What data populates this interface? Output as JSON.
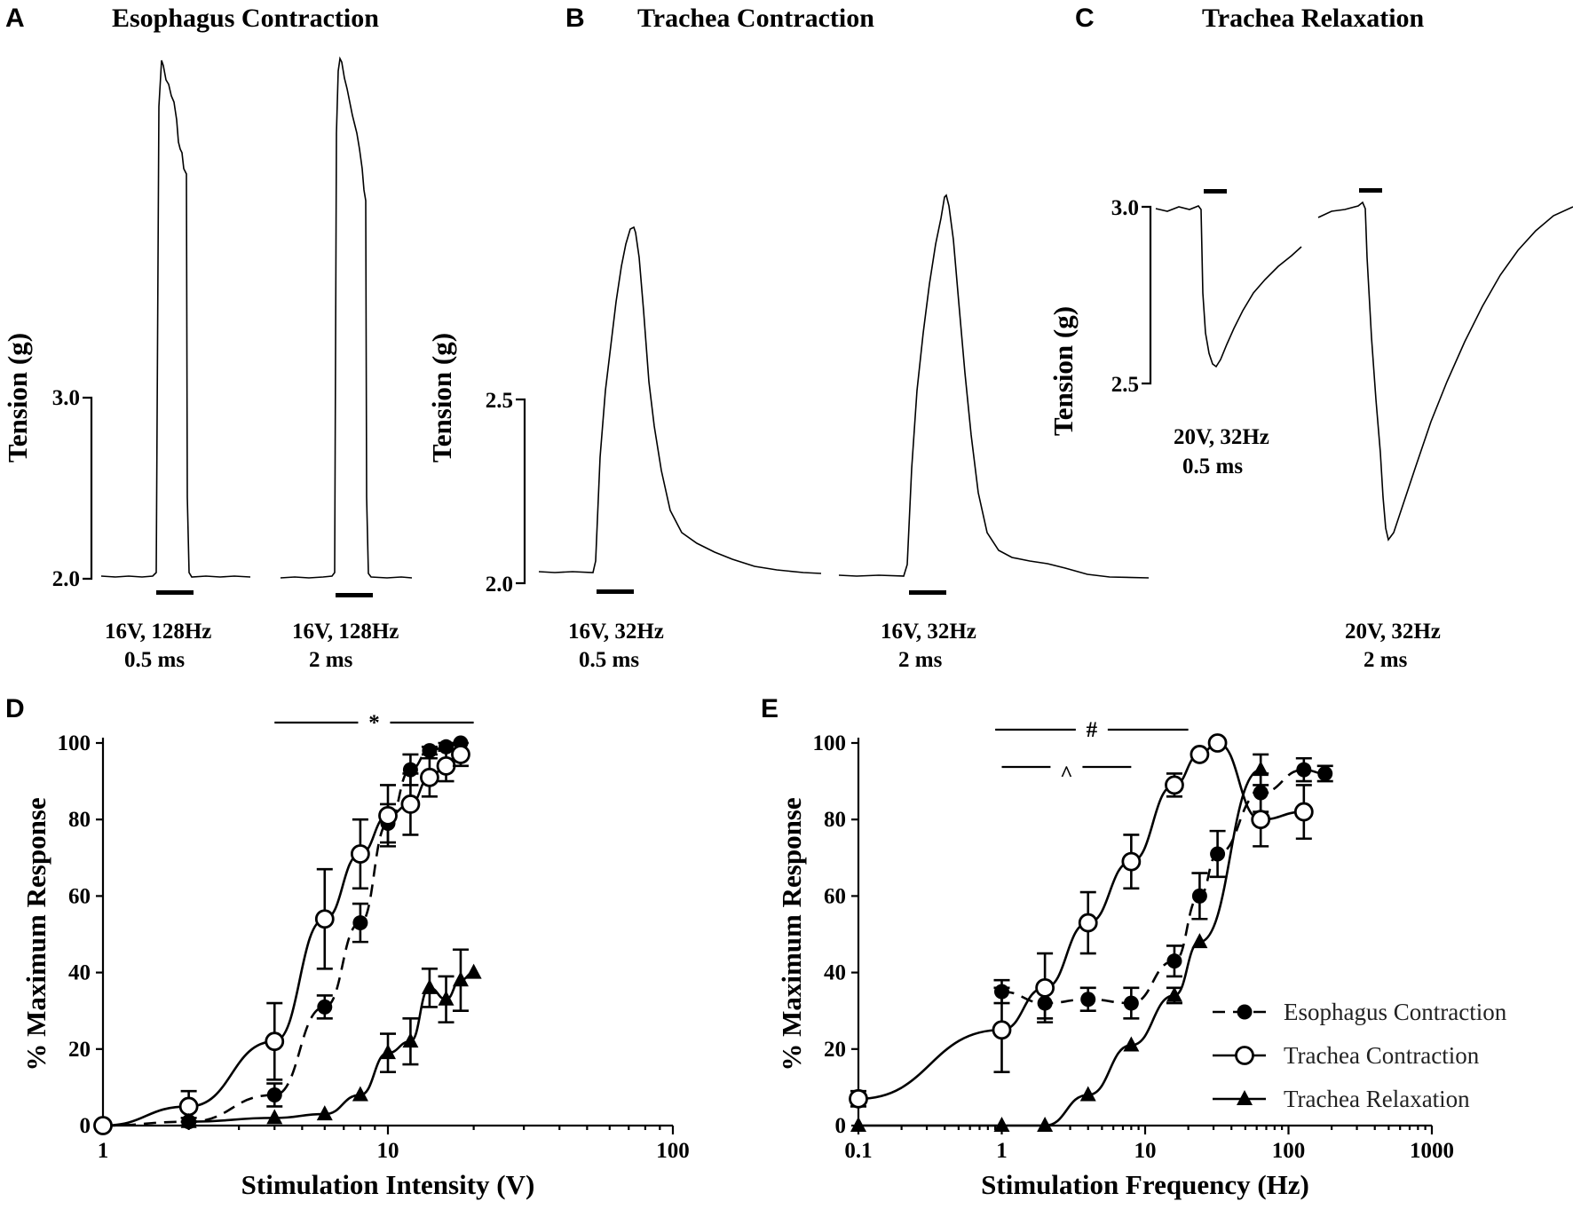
{
  "traces": {
    "A": {
      "letter": "A",
      "title": "Esophagus Contraction",
      "ylabel": "Tension (g)",
      "scale_ticks": [
        "3.0",
        "2.0"
      ],
      "captions": [
        {
          "line1": "16V, 128Hz",
          "line2": "0.5 ms"
        },
        {
          "line1": "16V, 128Hz",
          "line2": "2 ms"
        }
      ]
    },
    "B": {
      "letter": "B",
      "title": "Trachea Contraction",
      "ylabel": "Tension (g)",
      "scale_ticks": [
        "2.5",
        "2.0"
      ],
      "captions": [
        {
          "line1": "16V, 32Hz",
          "line2": "0.5 ms"
        },
        {
          "line1": "16V, 32Hz",
          "line2": "2 ms"
        }
      ]
    },
    "C": {
      "letter": "C",
      "title": "Trachea Relaxation",
      "ylabel": "Tension (g)",
      "scale_ticks": [
        "3.0",
        "2.5"
      ],
      "captions": [
        {
          "line1": "20V, 32Hz",
          "line2": "0.5 ms"
        },
        {
          "line1": "20V, 32Hz",
          "line2": "2 ms"
        }
      ]
    }
  },
  "chart_data": [
    {
      "panel": "D",
      "type": "scatter",
      "xscale": "log",
      "xlabel": "Stimulation Intensity (V)",
      "ylabel": "% Maximum Response",
      "xlim": [
        1,
        100
      ],
      "ylim": [
        0,
        100
      ],
      "xticks": [
        "1",
        "10",
        "100"
      ],
      "yticks": [
        "0",
        "20",
        "40",
        "60",
        "80",
        "100"
      ],
      "significance": [
        {
          "symbol": "*",
          "from": 4,
          "to": 20
        }
      ],
      "series": [
        {
          "name": "Esophagus Contraction",
          "marker": "filled-circle",
          "fit": "dashed",
          "x": [
            1,
            2,
            4,
            6,
            8,
            10,
            12,
            14,
            16,
            18
          ],
          "y": [
            0,
            1,
            8,
            31,
            53,
            79,
            93,
            98,
            99,
            100
          ],
          "err": [
            0,
            1,
            3,
            3,
            5,
            5,
            4,
            1,
            1,
            0
          ]
        },
        {
          "name": "Trachea Contraction",
          "marker": "open-circle",
          "fit": "solid",
          "x": [
            1,
            2,
            4,
            6,
            8,
            10,
            12,
            14,
            16,
            18
          ],
          "y": [
            0,
            5,
            22,
            54,
            71,
            81,
            84,
            91,
            94,
            97
          ],
          "err": [
            0,
            4,
            10,
            13,
            9,
            8,
            8,
            5,
            4,
            3
          ]
        },
        {
          "name": "Trachea Relaxation",
          "marker": "filled-triangle",
          "fit": "solid",
          "x": [
            2,
            4,
            6,
            8,
            10,
            12,
            14,
            16,
            18,
            20
          ],
          "y": [
            1,
            2,
            3,
            8,
            19,
            22,
            36,
            33,
            38,
            40
          ],
          "err": [
            0,
            0,
            0,
            0,
            5,
            6,
            5,
            6,
            8,
            0
          ]
        }
      ]
    },
    {
      "panel": "E",
      "type": "scatter",
      "xscale": "log",
      "xlabel": "Stimulation Frequency (Hz)",
      "ylabel": "% Maximum Response",
      "xlim": [
        0.1,
        1000
      ],
      "ylim": [
        0,
        100
      ],
      "xticks": [
        "0.1",
        "1",
        "10",
        "100",
        "1000"
      ],
      "yticks": [
        "0",
        "20",
        "40",
        "60",
        "80",
        "100"
      ],
      "significance": [
        {
          "symbol": "#",
          "from": 0.9,
          "to": 20
        },
        {
          "symbol": "^",
          "from": 1,
          "to": 8
        }
      ],
      "legend": {
        "position": "lower-right",
        "entries": [
          "Esophagus Contraction",
          "Trachea Contraction",
          "Trachea Relaxation"
        ]
      },
      "series": [
        {
          "name": "Esophagus Contraction",
          "marker": "filled-circle",
          "fit": "dashed",
          "x": [
            1,
            2,
            4,
            8,
            16,
            24,
            32,
            64,
            128,
            180
          ],
          "y": [
            35,
            32,
            33,
            32,
            43,
            60,
            71,
            87,
            93,
            92
          ],
          "err": [
            3,
            4,
            3,
            4,
            4,
            6,
            6,
            5,
            3,
            2
          ]
        },
        {
          "name": "Trachea Contraction",
          "marker": "open-circle",
          "fit": "solid",
          "x": [
            0.1,
            1,
            2,
            4,
            8,
            16,
            24,
            32,
            64,
            128
          ],
          "y": [
            7,
            25,
            36,
            53,
            69,
            89,
            97,
            100,
            80,
            82
          ],
          "err": [
            2,
            11,
            9,
            8,
            7,
            3,
            1,
            0,
            7,
            7
          ]
        },
        {
          "name": "Trachea Relaxation",
          "marker": "filled-triangle",
          "fit": "solid",
          "x": [
            0.1,
            1,
            2,
            4,
            8,
            16,
            24,
            64
          ],
          "y": [
            0,
            0,
            0,
            8,
            21,
            34,
            48,
            93
          ],
          "err": [
            0,
            0,
            0,
            0,
            0,
            2,
            0,
            4
          ]
        }
      ]
    }
  ]
}
